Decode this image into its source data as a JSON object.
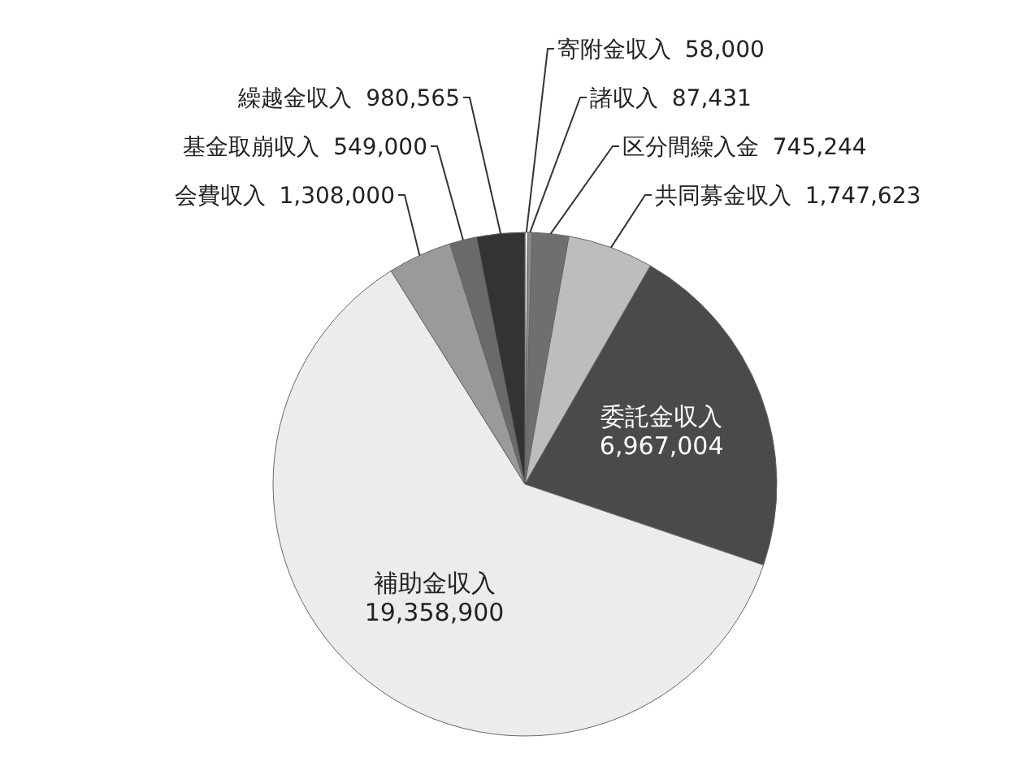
{
  "chart_data": {
    "type": "pie",
    "categories": [
      "寄附金収入",
      "諸収入",
      "区分間繰入金",
      "共同募金収入",
      "委託金収入",
      "補助金収入",
      "会費収入",
      "基金取崩収入",
      "繰越金収入"
    ],
    "values": [
      58000,
      87431,
      745244,
      1747623,
      6967004,
      19358900,
      1308000,
      549000,
      980565
    ],
    "colors": [
      "#f4f4f4",
      "#8a8a8a",
      "#6f6f6f",
      "#bdbdbd",
      "#4a4a4a",
      "#ececec",
      "#9a9a9a",
      "#6a6a6a",
      "#333333"
    ],
    "value_labels": [
      "58,000",
      "87,431",
      "745,244",
      "1,747,623",
      "6,967,004",
      "19,358,900",
      "1,308,000",
      "549,000",
      "980,565"
    ]
  }
}
